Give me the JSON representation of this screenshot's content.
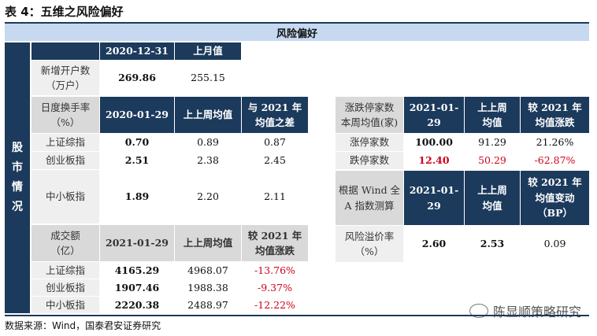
{
  "title": "表 4：五维之风险偏好",
  "banner": "风险偏好",
  "side_label": "股\n市\n情\n况",
  "accounts": {
    "label": "新增开户数\n（万户）",
    "h_date": "2020-12-31",
    "h_prev": "上月值",
    "value": "269.86",
    "prev": "255.15"
  },
  "turnover": {
    "label": "日度换手率\n（%）",
    "h_date": "2020-01-29",
    "h_prev": "上上周均值",
    "h_diff": "与 2021 年\n均值之差",
    "rows": [
      {
        "name": "上证综指",
        "value": "0.70",
        "prev": "0.89",
        "diff": "0.87"
      },
      {
        "name": "创业板指",
        "value": "2.51",
        "prev": "2.38",
        "diff": "2.45"
      },
      {
        "name": "中小板指",
        "value": "1.89",
        "prev": "2.20",
        "diff": "2.11"
      }
    ]
  },
  "volume": {
    "label": "成交额\n（亿）",
    "h_date": "2021-01-29",
    "h_prev": "上上周均值",
    "h_diff": "较 2021 年\n均值涨跌",
    "rows": [
      {
        "name": "上证综指",
        "value": "4165.29",
        "prev": "4968.07",
        "diff": "-13.76%"
      },
      {
        "name": "创业板指",
        "value": "1907.46",
        "prev": "1988.38",
        "diff": "-9.37%"
      },
      {
        "name": "中小板指",
        "value": "2220.38",
        "prev": "2488.97",
        "diff": "-12.22%"
      }
    ]
  },
  "limit": {
    "label": "涨跌停家数\n本周均值(家)",
    "h_date": "2021-01-\n29",
    "h_prev": "上上周\n均值",
    "h_diff": "较 2021 年\n均值涨跌",
    "rows": [
      {
        "name": "涨停家数",
        "value": "100.00",
        "prev": "91.29",
        "diff": "21.26%"
      },
      {
        "name": "跌停家数",
        "value": "12.40",
        "prev": "50.29",
        "diff": "-62.87%"
      }
    ]
  },
  "premium": {
    "label": "根据 Wind 全\nA 指数测算",
    "h_date": "2021-01-\n29",
    "h_prev": "上上周\n均值",
    "h_diff": "较 2021 年\n均值变动\n（BP）",
    "row_label": "风险溢价率\n（%）",
    "value": "2.60",
    "prev": "2.53",
    "diff": "0.09"
  },
  "source": "数据来源：Wind，国泰君安证券研究",
  "watermark": "陈显顺策略研究",
  "colors": {
    "navy": "#1b3a5c",
    "banner": "#c6d9f0",
    "red": "#d0021b",
    "grey": "#efefef"
  }
}
